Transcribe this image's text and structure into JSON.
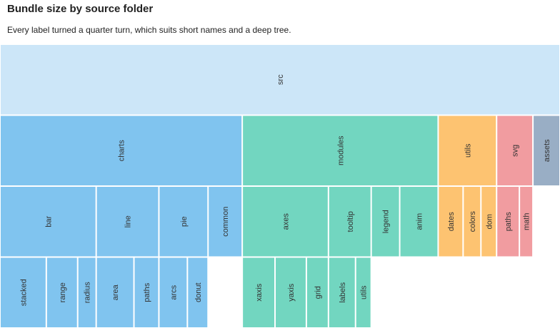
{
  "title": "Bundle size by source folder",
  "subtitle": "Every label turned a quarter turn, which suits short names and a deep tree.",
  "colors": {
    "root": "#cce6f8",
    "charts": "#80c4ef",
    "modules": "#72d6c0",
    "utils": "#fdc371",
    "svg": "#f19ca0",
    "assets": "#99aec5",
    "separator": "#ffffff"
  },
  "chart_data": {
    "type": "icicle",
    "orientation": "top-down",
    "label_rotation": -90,
    "root": {
      "name": "src",
      "children": [
        {
          "name": "charts",
          "children": [
            {
              "name": "bar",
              "children": [
                {
                  "name": "stacked",
                  "value": 65
                },
                {
                  "name": "range",
                  "value": 44
                },
                {
                  "name": "radius",
                  "value": 26
                }
              ]
            },
            {
              "name": "line",
              "children": [
                {
                  "name": "area",
                  "value": 53
                },
                {
                  "name": "paths",
                  "value": 35
                }
              ]
            },
            {
              "name": "pie",
              "children": [
                {
                  "name": "arcs",
                  "value": 40
                },
                {
                  "name": "donut",
                  "value": 29
                }
              ]
            },
            {
              "name": "common",
              "value": 48
            }
          ]
        },
        {
          "name": "modules",
          "children": [
            {
              "name": "axes",
              "children": [
                {
                  "name": "xaxis",
                  "value": 46
                },
                {
                  "name": "yaxis",
                  "value": 44
                },
                {
                  "name": "grid",
                  "value": 31
                }
              ]
            },
            {
              "name": "tooltip",
              "children": [
                {
                  "name": "labels",
                  "value": 38
                },
                {
                  "name": "utils",
                  "value": 22
                }
              ]
            },
            {
              "name": "legend",
              "value": 40
            },
            {
              "name": "anim",
              "value": 54
            }
          ]
        },
        {
          "name": "utils",
          "children": [
            {
              "name": "dates",
              "value": 35
            },
            {
              "name": "colors",
              "value": 25
            },
            {
              "name": "dom",
              "value": 22
            }
          ]
        },
        {
          "name": "svg",
          "children": [
            {
              "name": "paths",
              "value": 32
            },
            {
              "name": "math",
              "value": 19
            }
          ]
        },
        {
          "name": "assets",
          "value": 38
        }
      ]
    }
  }
}
